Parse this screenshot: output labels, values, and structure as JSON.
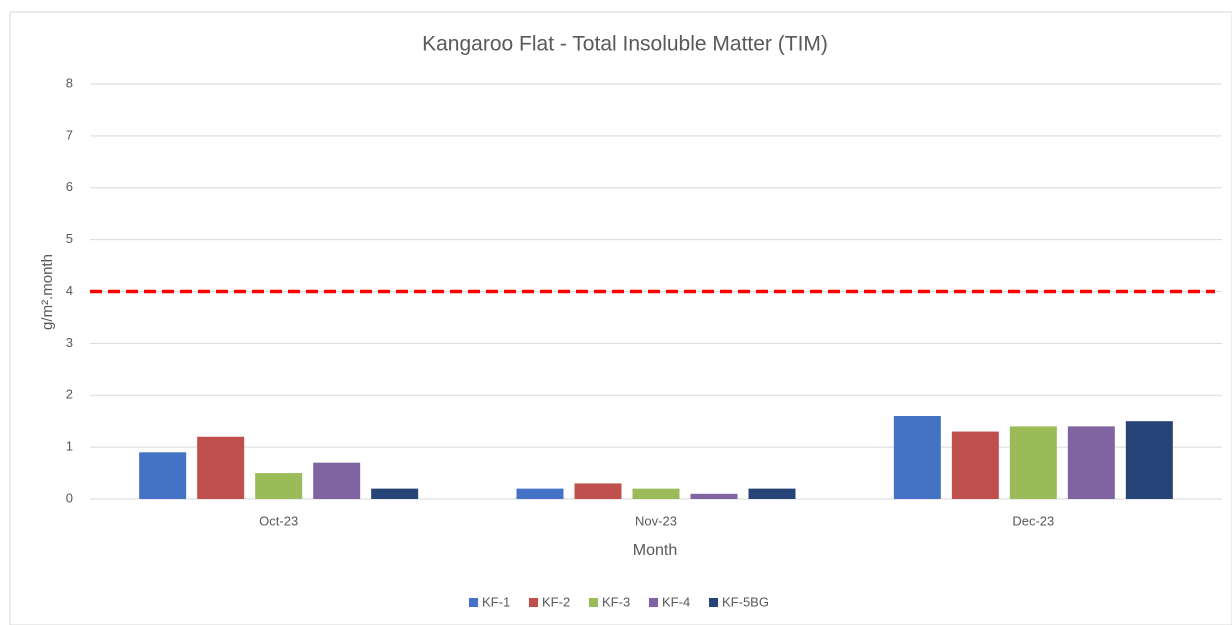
{
  "chart_data": {
    "type": "bar",
    "title": "Kangaroo Flat - Total Insoluble Matter (TIM)",
    "x_label": "Month",
    "y_label": "g/m².month",
    "categories": [
      "Oct-23",
      "Nov-23",
      "Dec-23"
    ],
    "series": [
      {
        "name": "KF-1",
        "color": "#4472c4",
        "values": [
          0.9,
          0.2,
          1.6
        ]
      },
      {
        "name": "KF-2",
        "color": "#c0504d",
        "values": [
          1.2,
          0.3,
          1.3
        ]
      },
      {
        "name": "KF-3",
        "color": "#9bbb59",
        "values": [
          0.5,
          0.2,
          1.4
        ]
      },
      {
        "name": "KF-4",
        "color": "#8064a2",
        "values": [
          0.7,
          0.1,
          1.4
        ]
      },
      {
        "name": "KF-5BG",
        "color": "#264478",
        "values": [
          0.2,
          0.2,
          1.5
        ]
      }
    ],
    "reference_line": {
      "value": 4,
      "color": "#ff0000",
      "dashed": true
    },
    "ylim": [
      0,
      8
    ],
    "yticks": [
      0,
      1,
      2,
      3,
      4,
      5,
      6,
      7,
      8
    ],
    "grid": true,
    "legend": "bottom"
  }
}
